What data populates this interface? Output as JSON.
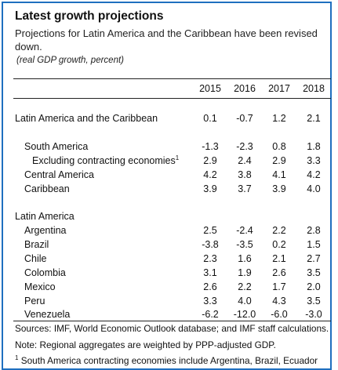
{
  "title": "Latest growth projections",
  "subtitle": "Projections for Latin America and the Caribbean have been revised down.",
  "units": "(real GDP growth, percent)",
  "years": [
    "2015",
    "2016",
    "2017",
    "2018"
  ],
  "rows": [
    {
      "label": "Latin America and the Caribbean",
      "values": [
        "0.1",
        "-0.7",
        "1.2",
        "2.1"
      ]
    },
    {
      "label": "South America",
      "values": [
        "-1.3",
        "-2.3",
        "0.8",
        "1.8"
      ]
    },
    {
      "label": "Excluding contracting economies",
      "sup": "1",
      "values": [
        "2.9",
        "2.4",
        "2.9",
        "3.3"
      ]
    },
    {
      "label": "Central America",
      "values": [
        "4.2",
        "3.8",
        "4.1",
        "4.2"
      ]
    },
    {
      "label": "Caribbean",
      "values": [
        "3.9",
        "3.7",
        "3.9",
        "4.0"
      ]
    }
  ],
  "section_label": "Latin America",
  "countries": [
    {
      "label": "Argentina",
      "values": [
        "2.5",
        "-2.4",
        "2.2",
        "2.8"
      ]
    },
    {
      "label": "Brazil",
      "values": [
        "-3.8",
        "-3.5",
        "0.2",
        "1.5"
      ]
    },
    {
      "label": "Chile",
      "values": [
        "2.3",
        "1.6",
        "2.1",
        "2.7"
      ]
    },
    {
      "label": "Colombia",
      "values": [
        "3.1",
        "1.9",
        "2.6",
        "3.5"
      ]
    },
    {
      "label": "Mexico",
      "values": [
        "2.6",
        "2.2",
        "1.7",
        "2.0"
      ]
    },
    {
      "label": "Peru",
      "values": [
        "3.3",
        "4.0",
        "4.3",
        "3.5"
      ]
    },
    {
      "label": "Venezuela",
      "values": [
        "-6.2",
        "-12.0",
        "-6.0",
        "-3.0"
      ]
    }
  ],
  "notes": {
    "sources": "Sources: IMF, World Economic Outlook database; and IMF staff calculations.",
    "note": "Note: Regional aggregates are weighted by PPP-adjusted GDP.",
    "footnote_mark": "1",
    "footnote": " South America contracting economies include Argentina, Brazil, Ecuador"
  }
}
